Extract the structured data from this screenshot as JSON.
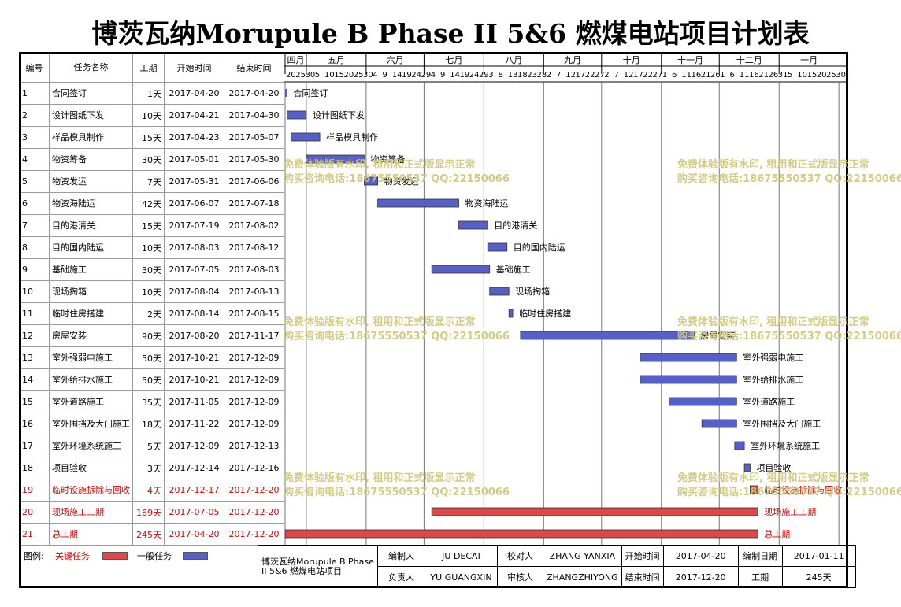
{
  "title": "博茨瓦纳Morupule B Phase II 5&6 燃煤电站项目计划表",
  "columns": {
    "no": "编号",
    "name": "任务名称",
    "duration": "工期",
    "start": "开始时间",
    "end": "结束时间"
  },
  "timescale": {
    "months": [
      "四月",
      "五月",
      "六月",
      "七月",
      "八月",
      "九月",
      "十月",
      "十一月",
      "十二月",
      "一月"
    ],
    "day_ticks": [
      "20",
      "25",
      "30",
      "5",
      "10",
      "15",
      "20",
      "25",
      "30",
      "4",
      "9",
      "14",
      "19",
      "24",
      "29",
      "4",
      "9",
      "14",
      "19",
      "24",
      "29",
      "3",
      "8",
      "13",
      "18",
      "23",
      "28",
      "2",
      "7",
      "12",
      "17",
      "22",
      "27",
      "2",
      "7",
      "12",
      "17",
      "22",
      "27",
      "1",
      "6",
      "11",
      "16",
      "21",
      "26",
      "1",
      "6",
      "11",
      "16",
      "21",
      "26",
      "31",
      "5",
      "10",
      "15",
      "20",
      "25",
      "30"
    ]
  },
  "tasks": [
    {
      "no": "1",
      "name": "合同签订",
      "duration": "1天",
      "start": "2017-04-20",
      "end": "2017-04-20",
      "critical": false,
      "label": "合同签订",
      "kind": "milestone"
    },
    {
      "no": "2",
      "name": "设计图纸下发",
      "duration": "10天",
      "start": "2017-04-21",
      "end": "2017-04-30",
      "critical": false,
      "label": "设计图纸下发"
    },
    {
      "no": "3",
      "name": "样品模具制作",
      "duration": "15天",
      "start": "2017-04-23",
      "end": "2017-05-07",
      "critical": false,
      "label": "样品模具制作"
    },
    {
      "no": "4",
      "name": "物资筹备",
      "duration": "30天",
      "start": "2017-05-01",
      "end": "2017-05-30",
      "critical": false,
      "label": "物资筹备"
    },
    {
      "no": "5",
      "name": "物资发运",
      "duration": "7天",
      "start": "2017-05-31",
      "end": "2017-06-06",
      "critical": false,
      "label": "物资发运"
    },
    {
      "no": "6",
      "name": "物资海陆运",
      "duration": "42天",
      "start": "2017-06-07",
      "end": "2017-07-18",
      "critical": false,
      "label": "物资海陆运"
    },
    {
      "no": "7",
      "name": "目的港清关",
      "duration": "15天",
      "start": "2017-07-19",
      "end": "2017-08-02",
      "critical": false,
      "label": "目的港清关"
    },
    {
      "no": "8",
      "name": "目的国内陆运",
      "duration": "10天",
      "start": "2017-08-03",
      "end": "2017-08-12",
      "critical": false,
      "label": "目的国内陆运"
    },
    {
      "no": "9",
      "name": "基础施工",
      "duration": "30天",
      "start": "2017-07-05",
      "end": "2017-08-03",
      "critical": false,
      "label": "基础施工"
    },
    {
      "no": "10",
      "name": "现场掏箱",
      "duration": "10天",
      "start": "2017-08-04",
      "end": "2017-08-13",
      "critical": false,
      "label": "现场掏箱"
    },
    {
      "no": "11",
      "name": "临时住房搭建",
      "duration": "2天",
      "start": "2017-08-14",
      "end": "2017-08-15",
      "critical": false,
      "label": "临时住房搭建"
    },
    {
      "no": "12",
      "name": "房屋安装",
      "duration": "90天",
      "start": "2017-08-20",
      "end": "2017-11-17",
      "critical": false,
      "label": "房屋安装"
    },
    {
      "no": "13",
      "name": "室外强弱电施工",
      "duration": "50天",
      "start": "2017-10-21",
      "end": "2017-12-09",
      "critical": false,
      "label": "室外强弱电施工"
    },
    {
      "no": "14",
      "name": "室外给排水施工",
      "duration": "50天",
      "start": "2017-10-21",
      "end": "2017-12-09",
      "critical": false,
      "label": "室外给排水施工"
    },
    {
      "no": "15",
      "name": "室外道路施工",
      "duration": "35天",
      "start": "2017-11-05",
      "end": "2017-12-09",
      "critical": false,
      "label": "室外道路施工"
    },
    {
      "no": "16",
      "name": "室外围挡及大门施工",
      "duration": "18天",
      "start": "2017-11-22",
      "end": "2017-12-09",
      "critical": false,
      "label": "室外围挡及大门施工"
    },
    {
      "no": "17",
      "name": "室外环境系统施工",
      "duration": "5天",
      "start": "2017-12-09",
      "end": "2017-12-13",
      "critical": false,
      "label": "室外环境系统施工"
    },
    {
      "no": "18",
      "name": "项目验收",
      "duration": "3天",
      "start": "2017-12-14",
      "end": "2017-12-16",
      "critical": false,
      "label": "项目验收"
    },
    {
      "no": "19",
      "name": "临时设施拆除与回收",
      "duration": "4天",
      "start": "2017-12-17",
      "end": "2017-12-20",
      "critical": true,
      "label": "临时设施拆除与回收"
    },
    {
      "no": "20",
      "name": "现场施工工期",
      "duration": "169天",
      "start": "2017-07-05",
      "end": "2017-12-20",
      "critical": true,
      "label": "现场施工工期"
    },
    {
      "no": "21",
      "name": "总工期",
      "duration": "245天",
      "start": "2017-04-20",
      "end": "2017-12-20",
      "critical": true,
      "label": "总工期"
    }
  ],
  "legend": {
    "label": "图例:",
    "critical": "关键任务",
    "normal": "一般任务"
  },
  "info": {
    "project": "博茨瓦纳Morupule B Phase II 5&6 燃煤电站项目",
    "compiler_label": "编制人",
    "compiler": "JU DECAI",
    "checker_label": "校对人",
    "checker": "ZHANG YANXIA",
    "start_label": "开始时间",
    "start": "2017-04-20",
    "date_label": "编制日期",
    "date": "2017-01-11",
    "owner_label": "负责人",
    "owner": "YU GUANGXIN",
    "reviewer_label": "审核人",
    "reviewer": "ZHANGZHIYONG",
    "end_label": "结束时间",
    "end": "2017-12-20",
    "duration_label": "工期",
    "duration": "245天"
  },
  "watermark": {
    "line1": "免费体验版有水印, 租用和正式版显示正常",
    "line2": "购买咨询电话:18675550537 QQ:22150066"
  },
  "colors": {
    "normal_bar": "#5560c8",
    "critical_bar": "#e04848",
    "critical_text": "#e00000",
    "watermark": "#cfc77a"
  }
}
